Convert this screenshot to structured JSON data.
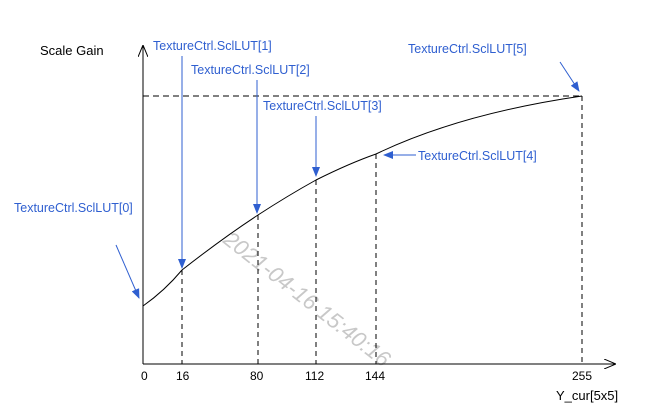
{
  "y_axis_label": "Scale Gain",
  "x_axis_label": "Y_cur[5x5]",
  "x_ticks": [
    "0",
    "16",
    "80",
    "112",
    "144",
    "255"
  ],
  "lut_labels": [
    "TextureCtrl.SclLUT[0]",
    "TextureCtrl.SclLUT[1]",
    "TextureCtrl.SclLUT[2]",
    "TextureCtrl.SclLUT[3]",
    "TextureCtrl.SclLUT[4]",
    "TextureCtrl.SclLUT[5]"
  ],
  "watermark": "2021-04-16  15:40:16",
  "colors": {
    "label": "#2f5fd0",
    "axis": "#000000",
    "watermark": "#c8c8c8"
  }
}
